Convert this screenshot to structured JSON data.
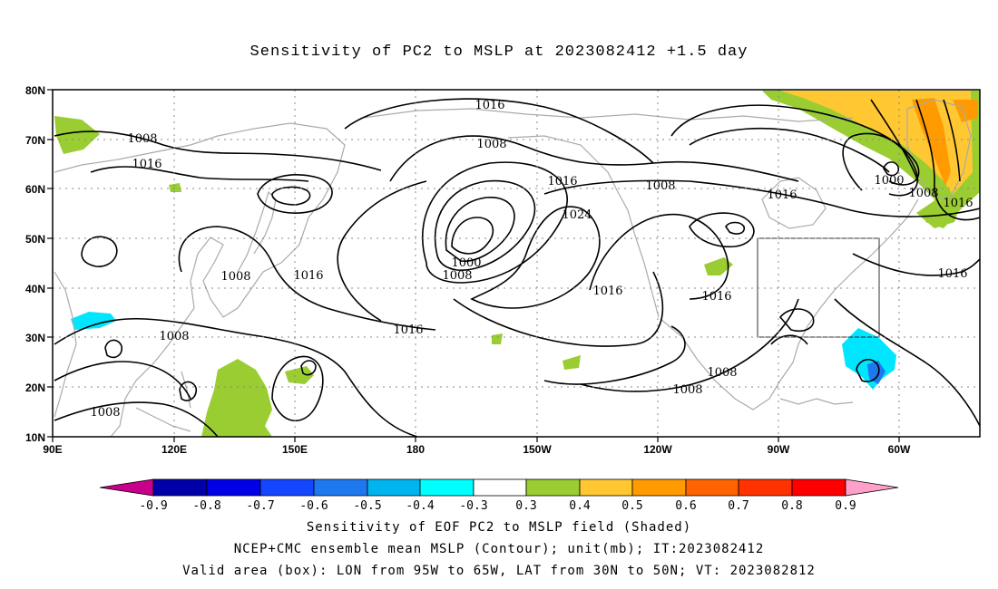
{
  "title": "Sensitivity of PC2 to MSLP at 2023082412 +1.5 day",
  "axes": {
    "lon_labels": [
      "90E",
      "120E",
      "150E",
      "180",
      "150W",
      "120W",
      "90W",
      "60W"
    ],
    "lat_labels": [
      "80N",
      "70N",
      "60N",
      "50N",
      "40N",
      "30N",
      "20N",
      "10N"
    ]
  },
  "contour_labels": [
    {
      "id": "c1016-a",
      "text": "1016"
    },
    {
      "id": "c1008-a",
      "text": "1008"
    },
    {
      "id": "c1016-b",
      "text": "1016"
    },
    {
      "id": "c1008-b",
      "text": "1008"
    },
    {
      "id": "c1016-c",
      "text": "1016"
    },
    {
      "id": "c1024",
      "text": "1024"
    },
    {
      "id": "c1008-c",
      "text": "1008"
    },
    {
      "id": "c1000-a",
      "text": "1000"
    },
    {
      "id": "c1008-d",
      "text": "1008"
    },
    {
      "id": "c1008-e",
      "text": "1008"
    },
    {
      "id": "c1016-d",
      "text": "1016"
    },
    {
      "id": "c1016-e",
      "text": "1016"
    },
    {
      "id": "c1016-f",
      "text": "1016"
    },
    {
      "id": "c1016-g",
      "text": "1016"
    },
    {
      "id": "c1000-b",
      "text": "1000"
    },
    {
      "id": "c1008-f",
      "text": "1008"
    },
    {
      "id": "c1016-h",
      "text": "1016"
    },
    {
      "id": "c1016-i",
      "text": "1016"
    },
    {
      "id": "c1008-g",
      "text": "1008"
    },
    {
      "id": "c1008-h",
      "text": "1008"
    },
    {
      "id": "c1016-j",
      "text": "1016"
    },
    {
      "id": "c1008-i",
      "text": "1008"
    },
    {
      "id": "c1008-j",
      "text": "1008"
    }
  ],
  "colorbar": {
    "labels": [
      "-0.9",
      "-0.8",
      "-0.7",
      "-0.6",
      "-0.5",
      "-0.4",
      "-0.3",
      "0.3",
      "0.4",
      "0.5",
      "0.6",
      "0.7",
      "0.8",
      "0.9"
    ],
    "colors": [
      "#0000a8",
      "#0000e6",
      "#1446ff",
      "#1e78f0",
      "#00b4f0",
      "#00ffff",
      "#ffffff",
      "#9acd32",
      "#ffc832",
      "#ff9b00",
      "#ff6400",
      "#ff3200",
      "#ff0000"
    ],
    "left_tip_color": "#c8008c",
    "right_tip_color": "#ffa0c8"
  },
  "captions": {
    "line1": "Sensitivity of EOF PC2 to MSLP field (Shaded)",
    "line2": "NCEP+CMC ensemble mean MSLP (Contour); unit(mb); IT:2023082412",
    "line3": "Valid area (box): LON from 95W to 65W, LAT from 30N to 50N; VT: 2023082812"
  },
  "shading_colors": {
    "green": "#9acd32",
    "yellow": "#ffc832",
    "orange": "#ff9b00",
    "cyan": "#00e6ff",
    "blue": "#1e78f0"
  }
}
